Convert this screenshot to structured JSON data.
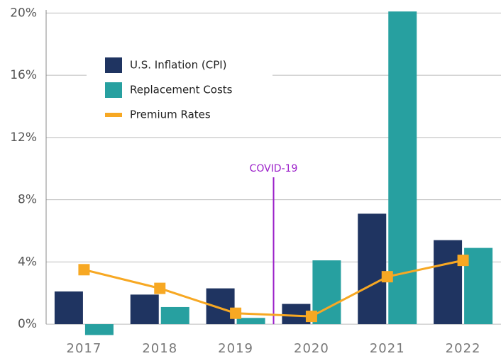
{
  "chart_data": {
    "type": "bar",
    "categories": [
      "2017",
      "2018",
      "2019",
      "2020",
      "2021",
      "2022"
    ],
    "series": [
      {
        "name": "U.S. Inflation (CPI)",
        "type": "bar",
        "color": "#1f3461",
        "values": [
          2.1,
          1.9,
          2.3,
          1.3,
          7.1,
          5.4
        ]
      },
      {
        "name": "Replacement Costs",
        "type": "bar",
        "color": "#27a0a0",
        "values": [
          -0.7,
          1.1,
          0.4,
          4.1,
          20.1,
          4.9
        ]
      },
      {
        "name": "Premium Rates",
        "type": "line",
        "color": "#f7a823",
        "values": [
          3.5,
          2.3,
          0.7,
          0.5,
          3.05,
          4.1
        ]
      }
    ],
    "ylim": [
      -1,
      20.2
    ],
    "yticks": [
      {
        "value": 0,
        "label": "0%"
      },
      {
        "value": 4,
        "label": "4%"
      },
      {
        "value": 8,
        "label": "8%"
      },
      {
        "value": 12,
        "label": "12%"
      },
      {
        "value": 16,
        "label": "16%"
      },
      {
        "value": 20,
        "label": "20%"
      }
    ],
    "grid": true,
    "legend": "upper left",
    "annotations": [
      {
        "text": "COVID-19",
        "color": "#9b1fc9"
      }
    ]
  }
}
